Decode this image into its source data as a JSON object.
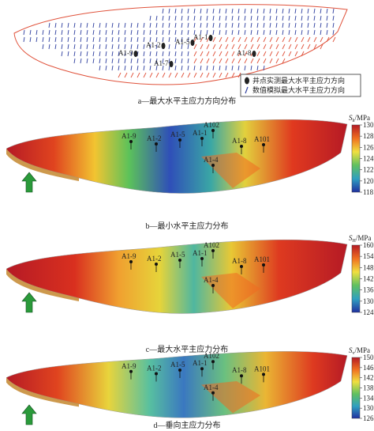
{
  "figure": {
    "panel_a": {
      "wells": [
        "A1-9",
        "A1-2",
        "A1-5",
        "A1-1",
        "A1-7",
        "A1-8"
      ],
      "legend": [
        "井点实测最大水平主应力方向",
        "数值模拟最大水平主应力方向"
      ],
      "caption": "a—最大水平主应力方向分布"
    },
    "wells": [
      "A1-9",
      "A1-2",
      "A1-5",
      "A1-1",
      "A102",
      "A1-8",
      "A101",
      "A1-4"
    ],
    "panels": [
      {
        "caption": "b—最小水平主应力分布",
        "colorbar": {
          "symbol": "S",
          "subscript": "h",
          "unit": "/MPa",
          "ticks": [
            118,
            120,
            122,
            124,
            126,
            128,
            130
          ]
        }
      },
      {
        "caption": "c—最大水平主应力分布",
        "colorbar": {
          "symbol": "S",
          "subscript": "H",
          "unit": "/MPa",
          "ticks": [
            124,
            130,
            136,
            142,
            148,
            154,
            160
          ]
        }
      },
      {
        "caption": "d—垂向主应力分布",
        "colorbar": {
          "symbol": "S",
          "subscript": "v",
          "unit": "/MPa",
          "ticks": [
            126,
            130,
            134,
            138,
            142,
            146,
            150
          ]
        }
      }
    ]
  }
}
